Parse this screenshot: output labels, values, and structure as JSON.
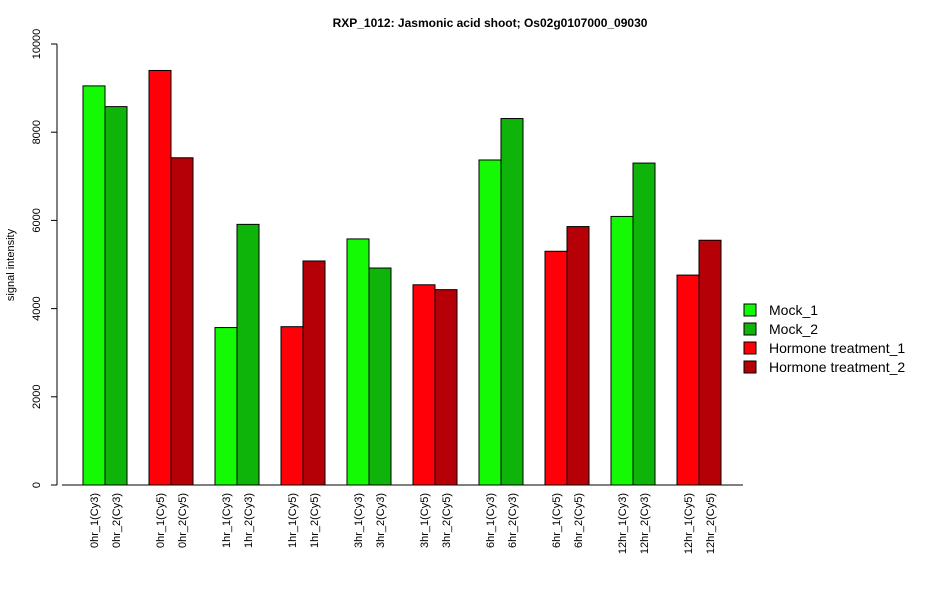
{
  "chart_data": {
    "type": "bar",
    "title": "RXP_1012: Jasmonic acid shoot; Os02g0107000_09030",
    "ylabel": "signal intensity",
    "xlabel": "",
    "ylim": [
      0,
      10000
    ],
    "yticks": [
      0,
      2000,
      4000,
      6000,
      8000,
      10000
    ],
    "categories": [
      "0hr_1(Cy3)",
      "0hr_2(Cy3)",
      "0hr_1(Cy5)",
      "0hr_2(Cy5)",
      "1hr_1(Cy3)",
      "1hr_2(Cy3)",
      "1hr_1(Cy5)",
      "1hr_2(Cy5)",
      "3hr_1(Cy3)",
      "3hr_2(Cy3)",
      "3hr_1(Cy5)",
      "3hr_2(Cy5)",
      "6hr_1(Cy3)",
      "6hr_2(Cy3)",
      "6hr_1(Cy5)",
      "6hr_2(Cy5)",
      "12hr_1(Cy3)",
      "12hr_2(Cy3)",
      "12hr_1(Cy5)",
      "12hr_2(Cy5)"
    ],
    "values": [
      9050,
      8580,
      9400,
      7420,
      3570,
      5910,
      3590,
      5080,
      5580,
      4920,
      4540,
      4430,
      7370,
      8310,
      5300,
      5860,
      6090,
      7300,
      4760,
      5550
    ],
    "series_index": [
      0,
      1,
      2,
      3,
      0,
      1,
      2,
      3,
      0,
      1,
      2,
      3,
      0,
      1,
      2,
      3,
      0,
      1,
      2,
      3
    ],
    "legend": {
      "placement": "right",
      "entries": [
        {
          "name": "Mock_1",
          "color": "#14fa05"
        },
        {
          "name": "Mock_2",
          "color": "#0fb40a"
        },
        {
          "name": "Hormone treatment_1",
          "color": "#ff0009"
        },
        {
          "name": "Hormone treatment_2",
          "color": "#b40006"
        }
      ]
    },
    "grid": false
  }
}
